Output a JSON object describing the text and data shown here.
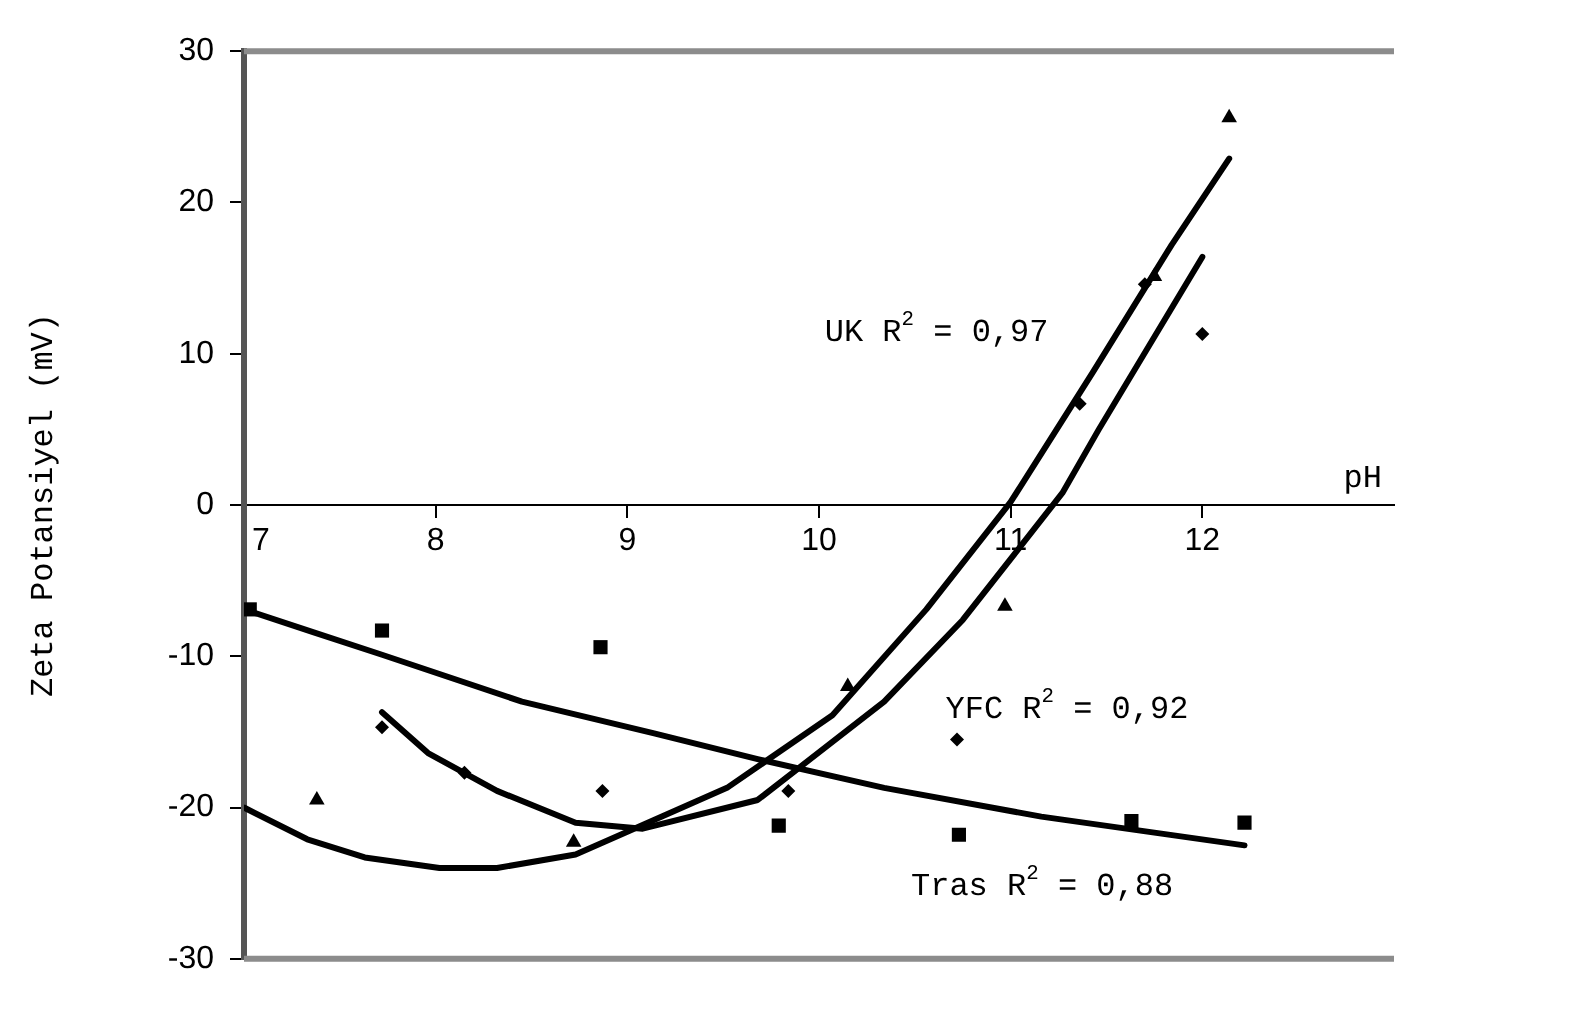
{
  "chart_data": {
    "type": "scatter",
    "xlabel": "pH",
    "ylabel": "Zeta Potansiyel (mV)",
    "xlim": [
      7,
      13
    ],
    "xticks": [
      7,
      8,
      9,
      10,
      11,
      12
    ],
    "ylim": [
      -30,
      30
    ],
    "yticks": [
      -30,
      -20,
      -10,
      0,
      10,
      20,
      30
    ],
    "grid": false,
    "legend": false,
    "annotations": [
      "UK R$^{2}$ = 0,97",
      "YFC R$^{2}$ = 0,92",
      "Tras R$^{2}$ = 0,88"
    ],
    "series": [
      {
        "marker": "square",
        "color": "#000000",
        "x": [
          7.03,
          7.72,
          8.86,
          9.79,
          10.73,
          11.63,
          12.22
        ],
        "values": [
          -6.9,
          -8.3,
          -9.4,
          -21.2,
          -21.8,
          -20.9,
          -21.0
        ]
      },
      {
        "marker": "diamond",
        "color": "#000000",
        "x": [
          7.72,
          8.15,
          8.87,
          9.84,
          10.72,
          11.36,
          11.7,
          12.0
        ],
        "values": [
          -14.7,
          -17.7,
          -18.9,
          -18.9,
          -15.5,
          6.7,
          14.6,
          11.3
        ]
      },
      {
        "marker": "triangle",
        "color": "#000000",
        "x": [
          7.38,
          8.72,
          10.15,
          10.97,
          11.75,
          12.14
        ],
        "values": [
          -19.5,
          -22.3,
          -12.0,
          -6.7,
          15.1,
          25.6
        ]
      },
      {
        "type": "line",
        "marker": "none",
        "color": "#000000",
        "x": [
          7.0,
          7.36,
          7.72,
          8.45,
          9.14,
          9.68,
          10.34,
          11.16,
          12.22
        ],
        "values": [
          -6.9,
          -8.4,
          -9.9,
          -13.0,
          -15.1,
          -16.8,
          -18.7,
          -20.6,
          -22.5
        ]
      },
      {
        "type": "line",
        "marker": "none",
        "color": "#000000",
        "x": [
          7.0,
          7.33,
          7.63,
          8.02,
          8.32,
          8.73,
          9.0,
          9.52,
          10.07,
          10.56,
          11.0,
          11.43,
          11.84,
          12.14
        ],
        "values": [
          -20.0,
          -22.1,
          -23.3,
          -24.0,
          -24.0,
          -23.1,
          -21.6,
          -18.7,
          -13.9,
          -6.9,
          0.2,
          8.8,
          17.2,
          22.9
        ]
      },
      {
        "type": "line",
        "marker": "none",
        "color": "#000000",
        "x": [
          7.72,
          7.96,
          8.32,
          8.73,
          9.08,
          9.68,
          10.34,
          10.75,
          11.27,
          11.46,
          12.0
        ],
        "values": [
          -13.7,
          -16.4,
          -18.9,
          -21.0,
          -21.4,
          -19.5,
          -13.0,
          -7.6,
          0.8,
          5.0,
          16.4
        ]
      }
    ]
  }
}
